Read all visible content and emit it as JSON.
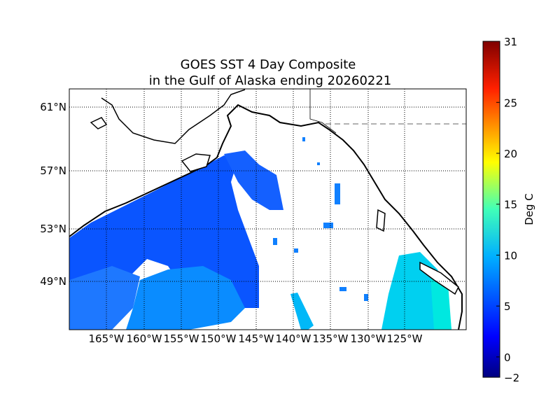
{
  "chart_data": {
    "type": "heatmap",
    "title_line1": "GOES SST 4 Day Composite",
    "title_line2": "in the Gulf of Alaska ending 20260221",
    "lat_labels": [
      "61°N",
      "57°N",
      "53°N",
      "49°N"
    ],
    "lat_values": [
      61,
      57,
      53,
      49
    ],
    "lon_labels": [
      "165°W",
      "160°W",
      "155°W",
      "150°W",
      "145°W",
      "140°W",
      "135°W",
      "130°W",
      "125°W"
    ],
    "lon_values": [
      -165,
      -160,
      -155,
      -150,
      -145,
      -140,
      -135,
      -130,
      -125
    ],
    "colorbar": {
      "label": "Deg C",
      "range": [
        -2,
        31
      ],
      "ticks": [
        -2,
        0,
        5,
        10,
        15,
        20,
        25,
        31
      ],
      "tick_labels": [
        "−2",
        "0",
        "5",
        "10",
        "15",
        "20",
        "25",
        "31"
      ],
      "colormap": "jet"
    },
    "grid": true,
    "colors": {
      "cold_sst": "#0a50ff",
      "mid_sst": "#0090ff",
      "warm_sst": "#00d8f0",
      "land": "#ffffff",
      "coast": "#000000"
    }
  }
}
